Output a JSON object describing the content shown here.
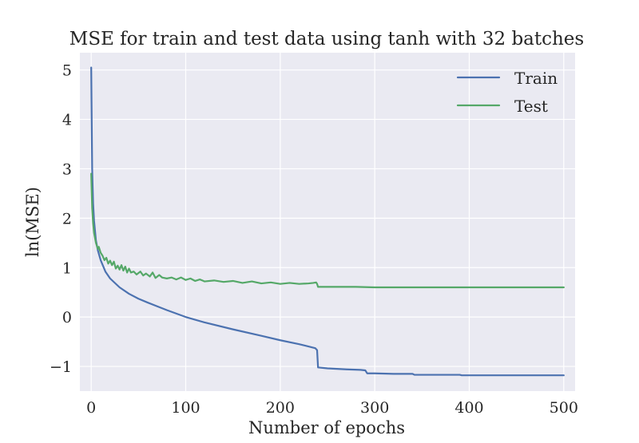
{
  "chart_data": {
    "type": "line",
    "title": "MSE for train and test data using tanh with 32 batches",
    "xlabel": "Number of epochs",
    "ylabel": "ln(MSE)",
    "xlim": [
      -12,
      512
    ],
    "ylim": [
      -1.5,
      5.35
    ],
    "xticks": [
      0,
      100,
      200,
      300,
      400,
      500
    ],
    "xtick_labels": [
      "0",
      "100",
      "200",
      "300",
      "400",
      "500"
    ],
    "yticks": [
      -1,
      0,
      1,
      2,
      3,
      4,
      5
    ],
    "ytick_labels": [
      "−1",
      "0",
      "1",
      "2",
      "3",
      "4",
      "5"
    ],
    "grid": true,
    "legend": "top-right",
    "background": "#EAEAF2",
    "series": [
      {
        "name": "Train",
        "color": "#4C72B0",
        "x": [
          0,
          1,
          2,
          3,
          5,
          7,
          10,
          15,
          20,
          30,
          40,
          50,
          60,
          80,
          100,
          120,
          150,
          180,
          200,
          220,
          237,
          238,
          239,
          240,
          250,
          260,
          270,
          285,
          290,
          292,
          295,
          300,
          320,
          340,
          342,
          360,
          390,
          392,
          420,
          450,
          480,
          500
        ],
        "y": [
          5.05,
          3.0,
          2.3,
          1.95,
          1.55,
          1.35,
          1.15,
          0.92,
          0.78,
          0.6,
          0.47,
          0.37,
          0.29,
          0.14,
          0.0,
          -0.11,
          -0.25,
          -0.38,
          -0.47,
          -0.55,
          -0.63,
          -0.65,
          -0.67,
          -1.02,
          -1.04,
          -1.05,
          -1.06,
          -1.07,
          -1.08,
          -1.14,
          -1.14,
          -1.14,
          -1.15,
          -1.15,
          -1.17,
          -1.17,
          -1.17,
          -1.18,
          -1.18,
          -1.18,
          -1.18,
          -1.18
        ]
      },
      {
        "name": "Test",
        "color": "#55A868",
        "x": [
          0,
          1,
          2,
          3,
          5,
          7,
          8,
          10,
          12,
          14,
          16,
          18,
          20,
          22,
          24,
          26,
          28,
          30,
          32,
          34,
          36,
          38,
          40,
          42,
          45,
          48,
          52,
          55,
          58,
          62,
          65,
          68,
          72,
          75,
          80,
          85,
          90,
          95,
          100,
          105,
          110,
          115,
          120,
          130,
          140,
          150,
          160,
          170,
          175,
          180,
          190,
          200,
          210,
          220,
          230,
          235,
          238,
          239,
          240,
          260,
          280,
          300,
          350,
          400,
          450,
          500
        ],
        "y": [
          2.9,
          2.2,
          1.9,
          1.7,
          1.5,
          1.38,
          1.42,
          1.3,
          1.24,
          1.15,
          1.2,
          1.08,
          1.14,
          1.05,
          1.12,
          0.98,
          1.04,
          0.96,
          1.05,
          0.94,
          1.02,
          0.9,
          0.98,
          0.9,
          0.92,
          0.86,
          0.92,
          0.84,
          0.88,
          0.82,
          0.9,
          0.79,
          0.85,
          0.8,
          0.78,
          0.8,
          0.76,
          0.8,
          0.75,
          0.78,
          0.73,
          0.76,
          0.72,
          0.74,
          0.71,
          0.73,
          0.69,
          0.72,
          0.7,
          0.68,
          0.7,
          0.67,
          0.69,
          0.67,
          0.68,
          0.69,
          0.7,
          0.67,
          0.61,
          0.61,
          0.61,
          0.6,
          0.6,
          0.6,
          0.6,
          0.6
        ]
      }
    ]
  }
}
